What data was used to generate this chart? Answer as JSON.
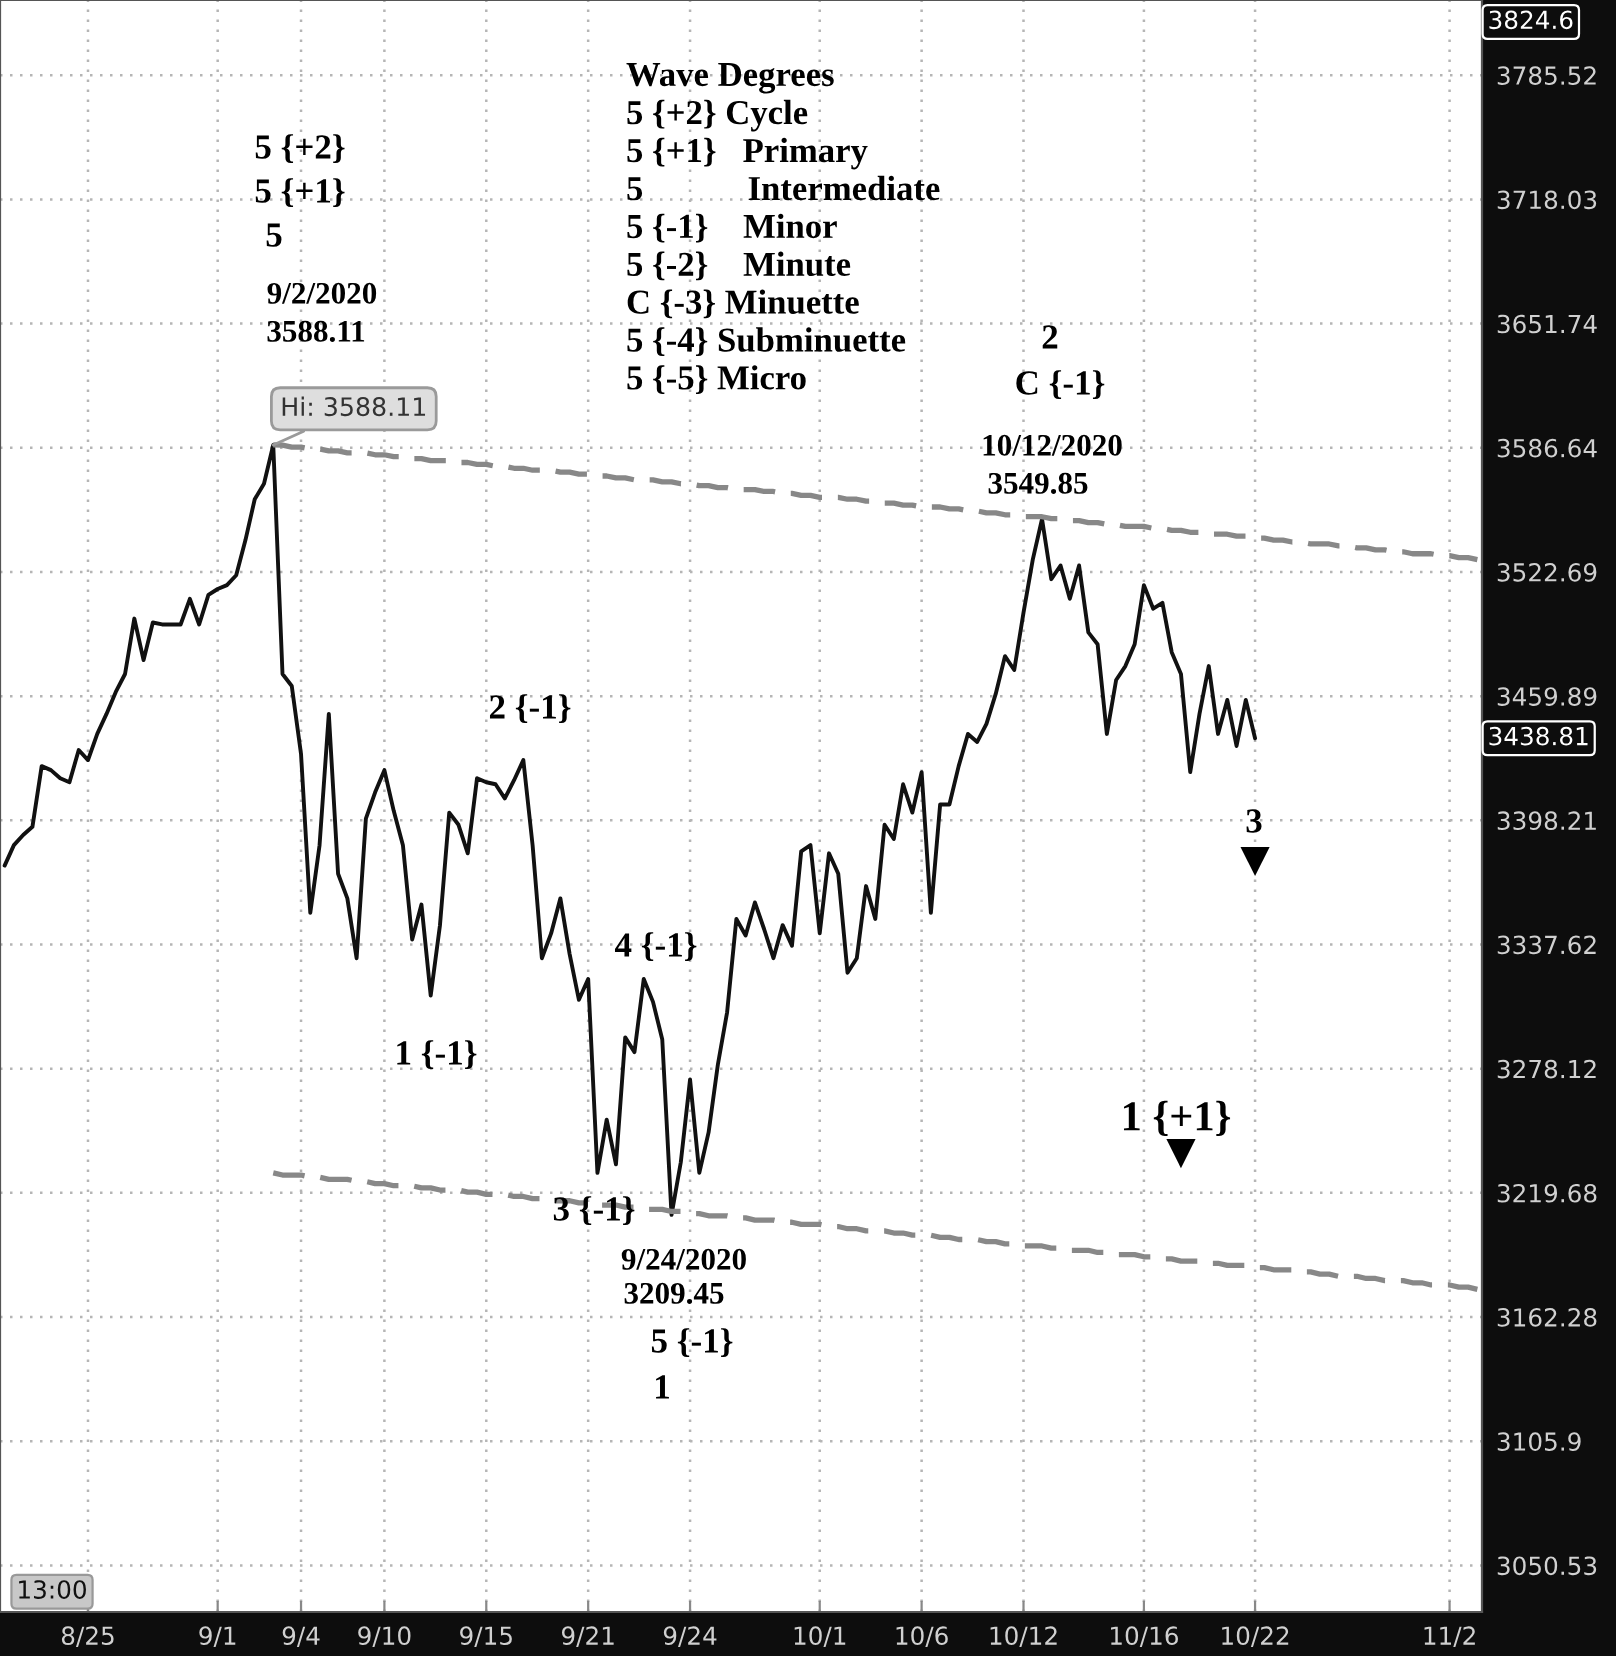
{
  "chart_data": {
    "type": "line",
    "categories": [
      null,
      null,
      null,
      null,
      null,
      null,
      null,
      null,
      null,
      "8/25",
      null,
      null,
      null,
      null,
      null,
      null,
      null,
      null,
      null,
      null,
      null,
      null,
      null,
      "9/1",
      null,
      null,
      null,
      null,
      null,
      null,
      null,
      null,
      "9/4",
      null,
      null,
      null,
      null,
      null,
      null,
      null,
      null,
      "9/10",
      null,
      null,
      null,
      null,
      null,
      null,
      null,
      null,
      null,
      null,
      "9/15",
      null,
      null,
      null,
      null,
      null,
      null,
      null,
      null,
      null,
      null,
      "9/21",
      null,
      null,
      null,
      null,
      null,
      null,
      null,
      null,
      null,
      null,
      "9/24",
      null,
      null,
      null,
      null,
      null,
      null,
      null,
      null,
      null,
      null,
      null,
      null,
      null,
      "10/1",
      null,
      null,
      null,
      null,
      null,
      null,
      null,
      null,
      null,
      null,
      "10/6",
      null,
      null,
      null,
      null,
      null,
      null,
      null,
      null,
      null,
      null,
      "10/12",
      null,
      null,
      null,
      null,
      null,
      null,
      null,
      null,
      null,
      null,
      null,
      null,
      "10/16",
      null,
      null,
      null,
      null,
      null,
      null,
      null,
      null,
      null,
      null,
      null,
      "10/22",
      null,
      null,
      null,
      null,
      null,
      null,
      null,
      null,
      null,
      null,
      null,
      null,
      null,
      null,
      null,
      null,
      null,
      null,
      null,
      null,
      "11/2",
      null,
      null,
      null
    ],
    "series": [
      {
        "color": "#111111",
        "values": [
          3376,
          3386,
          3391,
          3395,
          3425,
          3423,
          3419,
          3417,
          3433,
          3428,
          3441,
          3451,
          3462,
          3471,
          3499,
          3478,
          3497,
          3496,
          3496,
          3496,
          3509,
          3496,
          3511,
          3514,
          3516,
          3521,
          3539,
          3560,
          3568,
          3588.11,
          3471,
          3465,
          3431,
          3353,
          3386,
          3451,
          3372,
          3360,
          3331,
          3399,
          3412,
          3423,
          3403,
          3386,
          3340,
          3357,
          3313,
          3347,
          3402,
          3396,
          3382,
          3419,
          3417,
          3416,
          3409,
          3418,
          3428,
          3386,
          3331,
          3343,
          3360,
          3333,
          3311,
          3321,
          3229,
          3254,
          3233,
          3293,
          3286,
          3321,
          3310,
          3292,
          3209.45,
          3234,
          3273,
          3229,
          3248,
          3280,
          3305,
          3350,
          3342,
          3358,
          3345,
          3331,
          3347,
          3337,
          3383,
          3386,
          3343,
          3382,
          3372,
          3324,
          3331,
          3366,
          3350,
          3396,
          3389,
          3416,
          3402,
          3422,
          3353,
          3406,
          3406,
          3425,
          3441,
          3437,
          3446,
          3461,
          3480,
          3473,
          3502,
          3529,
          3549.85,
          3519,
          3526,
          3509,
          3526,
          3492,
          3486,
          3441,
          3468,
          3475,
          3486,
          3516,
          3504,
          3507,
          3482,
          3471,
          3422,
          3451,
          3475,
          3441,
          3458,
          3435,
          3458,
          3438.81,
          null,
          null,
          null,
          null,
          null,
          null,
          null,
          null,
          null,
          null,
          null,
          null,
          null,
          null,
          null,
          null,
          null,
          null,
          null,
          null,
          null,
          null,
          null,
          null
        ]
      },
      {
        "type": "line",
        "color": "#888888",
        "line_style": "dashed",
        "values": [
          null,
          null,
          null,
          null,
          null,
          null,
          null,
          null,
          null,
          null,
          null,
          null,
          null,
          null,
          null,
          null,
          null,
          null,
          null,
          null,
          null,
          null,
          null,
          null,
          null,
          null,
          null,
          null,
          null,
          3588.11,
          3588,
          3587,
          3587,
          3586,
          3586,
          3585,
          3585,
          3584,
          3584,
          3584,
          3583,
          3583,
          3582,
          3582,
          3581,
          3581,
          3580,
          3580,
          3580,
          3579,
          3579,
          3578,
          3578,
          3577,
          3577,
          3576,
          3576,
          3575,
          3575,
          3575,
          3574,
          3574,
          3573,
          3573,
          3572,
          3572,
          3571,
          3571,
          3570,
          3570,
          3570,
          3569,
          3569,
          3568,
          3568,
          3567,
          3567,
          3566,
          3566,
          3565,
          3565,
          3565,
          3564,
          3564,
          3563,
          3563,
          3562,
          3562,
          3561,
          3561,
          3561,
          3560,
          3560,
          3559,
          3559,
          3558,
          3558,
          3557,
          3557,
          3556,
          3556,
          3556,
          3555,
          3555,
          3554,
          3554,
          3553,
          3553,
          3552,
          3552,
          3551,
          3551,
          3551,
          3550,
          3550,
          3549,
          3549,
          3548,
          3548,
          3547,
          3547,
          3546,
          3546,
          3546,
          3545,
          3545,
          3544,
          3544,
          3543,
          3543,
          3542,
          3542,
          3542,
          3541,
          3541,
          3540,
          3540,
          3539,
          3539,
          3538,
          3538,
          3537,
          3537,
          3537,
          3536,
          3536,
          3535,
          3535,
          3534,
          3534,
          3533,
          3533,
          3532,
          3532,
          3532,
          3531,
          3531,
          3530,
          3530,
          3529
        ]
      },
      {
        "type": "line",
        "color": "#888888",
        "line_style": "dashed",
        "values": [
          null,
          null,
          null,
          null,
          null,
          null,
          null,
          null,
          null,
          null,
          null,
          null,
          null,
          null,
          null,
          null,
          null,
          null,
          null,
          null,
          null,
          null,
          null,
          null,
          null,
          null,
          null,
          null,
          null,
          3229,
          3228,
          3228,
          3228,
          3227,
          3227,
          3226,
          3226,
          3226,
          3225,
          3225,
          3224,
          3224,
          3223,
          3223,
          3223,
          3222,
          3222,
          3221,
          3221,
          3221,
          3220,
          3220,
          3219,
          3219,
          3219,
          3218,
          3218,
          3217,
          3217,
          3216,
          3216,
          3216,
          3215,
          3215,
          3214,
          3214,
          3214,
          3213,
          3213,
          3212,
          3212,
          3212,
          3211,
          3211,
          3210,
          3210,
          3209,
          3209,
          3209,
          3208,
          3208,
          3207,
          3207,
          3207,
          3206,
          3206,
          3205,
          3205,
          3205,
          3204,
          3204,
          3203,
          3203,
          3202,
          3202,
          3202,
          3201,
          3201,
          3200,
          3200,
          3200,
          3199,
          3199,
          3198,
          3198,
          3198,
          3197,
          3197,
          3196,
          3196,
          3195,
          3195,
          3195,
          3194,
          3194,
          3193,
          3193,
          3193,
          3192,
          3192,
          3191,
          3191,
          3191,
          3190,
          3190,
          3189,
          3189,
          3188,
          3188,
          3188,
          3187,
          3187,
          3186,
          3186,
          3186,
          3185,
          3185,
          3184,
          3184,
          3184,
          3183,
          3183,
          3182,
          3182,
          3181,
          3181,
          3181,
          3180,
          3180,
          3179,
          3179,
          3179,
          3178,
          3178,
          3177,
          3177,
          3177,
          3176,
          3176,
          3175
        ]
      },
      {
        "type": "scatter",
        "color": "#000000",
        "marker": "triangle",
        "values": [
          null,
          null,
          null,
          null,
          null,
          null,
          null,
          null,
          null,
          null,
          null,
          null,
          null,
          null,
          null,
          null,
          null,
          null,
          null,
          null,
          null,
          null,
          null,
          null,
          null,
          null,
          null,
          null,
          null,
          null,
          null,
          null,
          null,
          null,
          null,
          null,
          null,
          null,
          null,
          null,
          null,
          null,
          null,
          null,
          null,
          null,
          null,
          null,
          null,
          null,
          null,
          null,
          null,
          null,
          null,
          null,
          null,
          null,
          null,
          null,
          null,
          null,
          null,
          null,
          null,
          null,
          null,
          null,
          null,
          null,
          null,
          null,
          null,
          null,
          null,
          null,
          null,
          null,
          null,
          null,
          null,
          null,
          null,
          null,
          null,
          null,
          null,
          null,
          null,
          null,
          null,
          null,
          null,
          null,
          null,
          null,
          null,
          null,
          null,
          null,
          null,
          null,
          null,
          null,
          null,
          null,
          null,
          null,
          null,
          null,
          null,
          null,
          null,
          null,
          null,
          null,
          null,
          null,
          null,
          null,
          null,
          null,
          null,
          null,
          null,
          null,
          null,
          3238,
          null,
          null,
          null,
          null,
          null,
          null,
          null,
          3378,
          null,
          null,
          null,
          null,
          null,
          null,
          null,
          null,
          null,
          null,
          null,
          null,
          null,
          null,
          null,
          null,
          null,
          null,
          null,
          null,
          null,
          null,
          null,
          null
        ]
      }
    ],
    "ylim": [
      3030,
      3827
    ],
    "yticks": [
      3785.52,
      3718.03,
      3651.74,
      3586.64,
      3522.69,
      3459.89,
      3398.21,
      3337.62,
      3278.12,
      3219.68,
      3162.28,
      3105.9,
      3050.53
    ],
    "log": true,
    "grid": true,
    "annotations": [
      "Wave Degrees\n5 {+2} Cycle\n5 {+1}   Primary\n5            Intermediate\n5 {-1}    Minor\n5 {-2}    Minute\nC {-3} Minuette\n5 {-4} Subminuette\n5 {-5} Micro",
      "5 {+2}",
      "5 {+1}",
      "5",
      "9/2/2020",
      "3588.11",
      "Hi: 3588.11",
      "2",
      "C {-1}",
      "10/12/2020",
      "3549.85",
      "2 {-1}",
      "1 {-1}",
      "4 {-1}",
      "3 {-1}",
      "9/24/2020",
      "3209.45",
      "5 {-1}",
      "1",
      "3",
      "1 {+1}",
      "3824.6",
      "3438.81",
      "13:00"
    ]
  }
}
